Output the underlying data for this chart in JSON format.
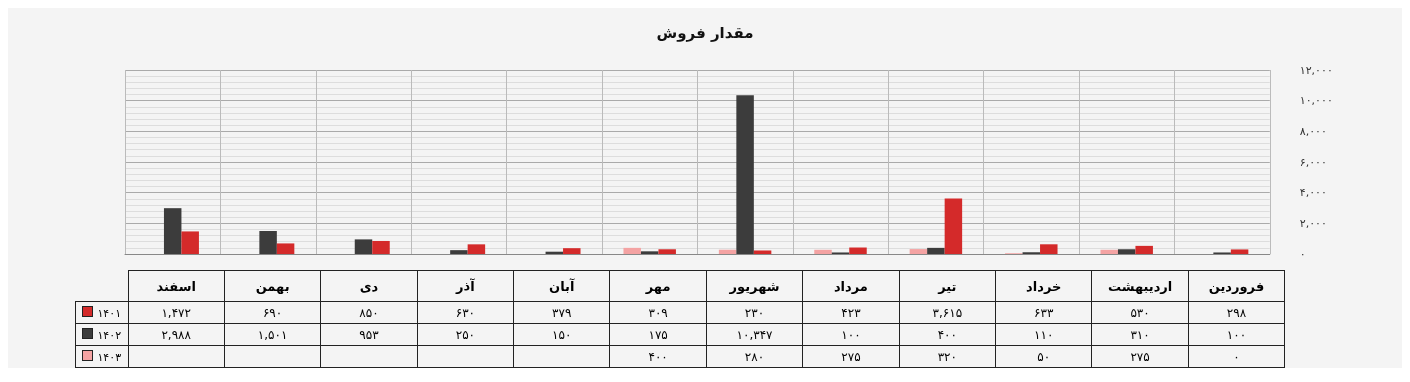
{
  "chart_data": {
    "type": "bar",
    "title": "مقدار فروش",
    "categories": [
      "اسفند",
      "بهمن",
      "دی",
      "آذر",
      "آبان",
      "مهر",
      "شهریور",
      "مرداد",
      "تیر",
      "خرداد",
      "اردیبهشت",
      "فروردین"
    ],
    "series": [
      {
        "name": "۱۴۰۳",
        "color": "#f4a3a3",
        "values": [
          null,
          null,
          null,
          null,
          null,
          400,
          280,
          275,
          320,
          50,
          275,
          0
        ],
        "value_labels": [
          null,
          null,
          null,
          null,
          null,
          "۴۰۰",
          "۲۸۰",
          "۲۷۵",
          "۳۲۰",
          "۵۰",
          "۲۷۵",
          "۰"
        ]
      },
      {
        "name": "۱۴۰۲",
        "color": "#3c3c3c",
        "values": [
          2988,
          1501,
          953,
          250,
          150,
          175,
          10347,
          100,
          400,
          110,
          310,
          100
        ],
        "value_labels": [
          "۲,۹۸۸",
          "۱,۵۰۱",
          "۹۵۳",
          "۲۵۰",
          "۱۵۰",
          "۱۷۵",
          "۱۰,۳۴۷",
          "۱۰۰",
          "۴۰۰",
          "۱۱۰",
          "۳۱۰",
          "۱۰۰"
        ]
      },
      {
        "name": "۱۴۰۱",
        "color": "#d42a2a",
        "values": [
          1472,
          690,
          850,
          630,
          379,
          309,
          230,
          423,
          3615,
          633,
          530,
          298
        ],
        "value_labels": [
          "۱,۴۷۲",
          "۶۹۰",
          "۸۵۰",
          "۶۳۰",
          "۳۷۹",
          "۳۰۹",
          "۲۳۰",
          "۴۲۳",
          "۳,۶۱۵",
          "۶۳۳",
          "۵۳۰",
          "۲۹۸"
        ]
      }
    ],
    "ylim": [
      0,
      12000
    ],
    "yticks": [
      {
        "value": 0,
        "label": "۰"
      },
      {
        "value": 2000,
        "label": "۲,۰۰۰"
      },
      {
        "value": 4000,
        "label": "۴,۰۰۰"
      },
      {
        "value": 6000,
        "label": "۶,۰۰۰"
      },
      {
        "value": 8000,
        "label": "۸,۰۰۰"
      },
      {
        "value": 10000,
        "label": "۱۰,۰۰۰"
      },
      {
        "value": 12000,
        "label": "۱۲,۰۰۰"
      }
    ],
    "grid": true,
    "legend": "bottom left"
  }
}
